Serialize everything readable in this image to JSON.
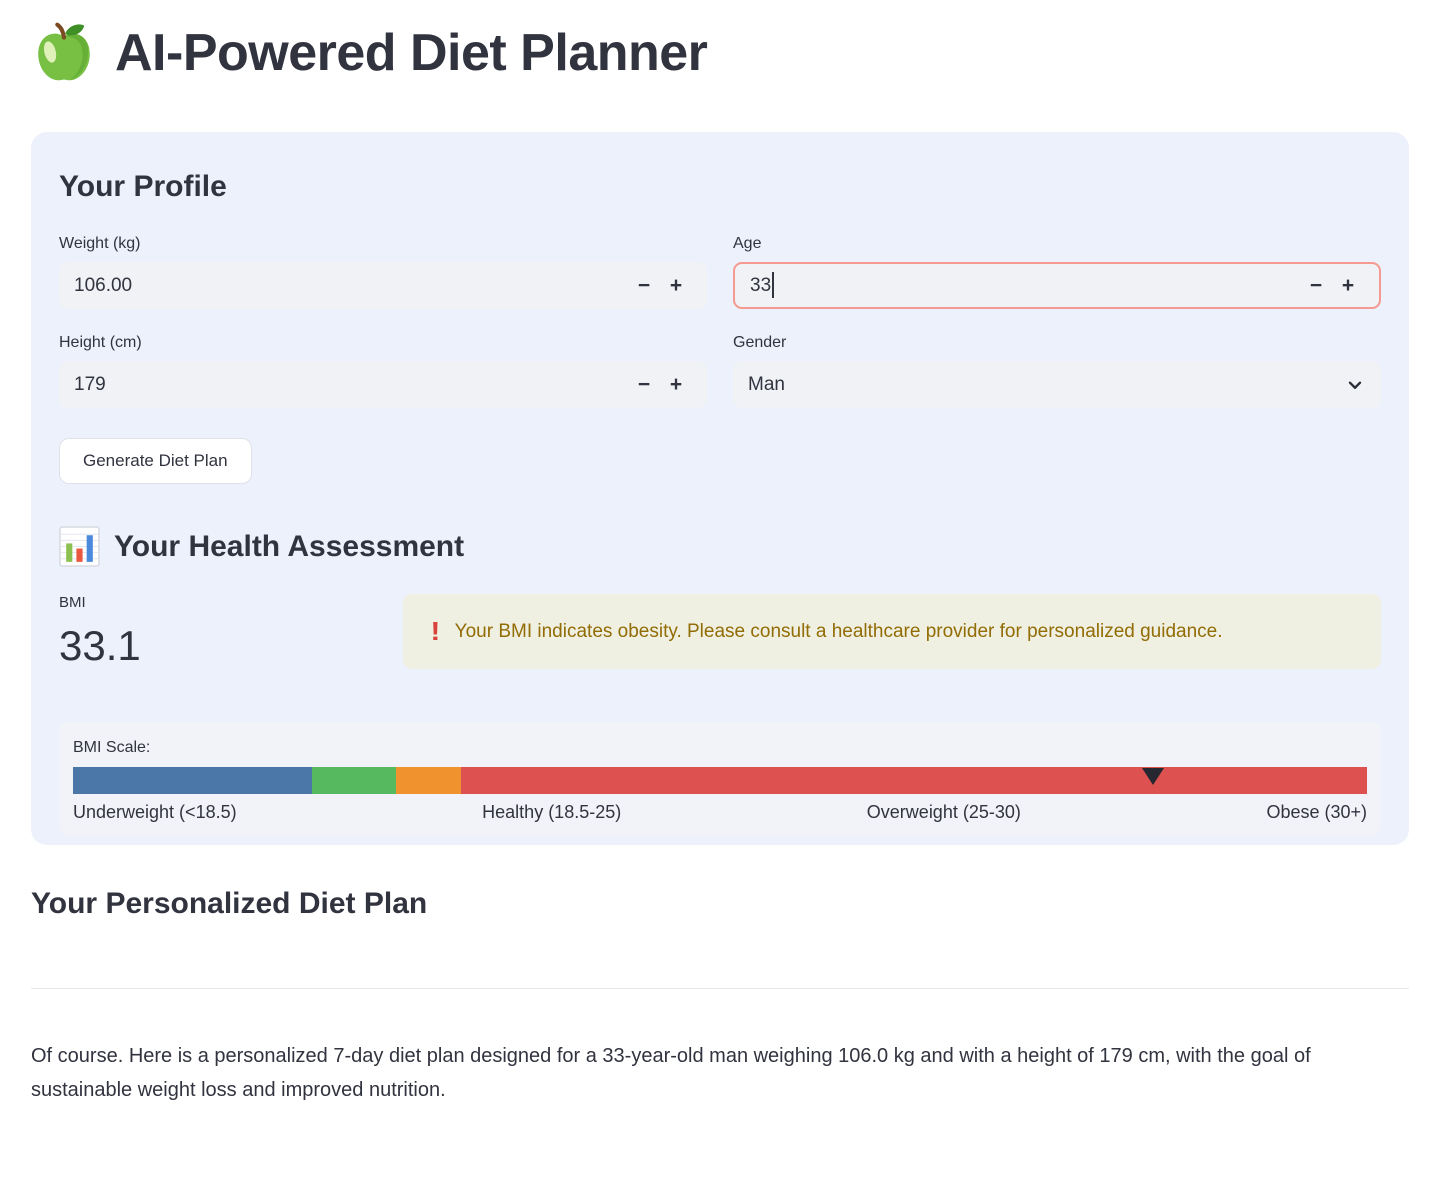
{
  "app": {
    "title": "AI-Powered Diet Planner",
    "icon": "green-apple-icon"
  },
  "controls": {
    "minus": "−",
    "plus": "+"
  },
  "profile": {
    "heading": "Your Profile",
    "weight": {
      "label": "Weight (kg)",
      "value": "106.00"
    },
    "age": {
      "label": "Age",
      "value": "33"
    },
    "height": {
      "label": "Height (cm)",
      "value": "179"
    },
    "gender": {
      "label": "Gender",
      "value": "Man"
    },
    "generate_button": "Generate Diet Plan"
  },
  "assessment": {
    "heading": "Your Health Assessment",
    "heading_icon": "bar-chart-icon",
    "bmi": {
      "label": "BMI",
      "value": "33.1"
    },
    "warning": {
      "icon": "!",
      "text": "Your BMI indicates obesity. Please consult a healthcare provider for personalized guidance.",
      "bg_color": "#f0f0e2",
      "text_color": "#926c05",
      "icon_color": "#d8433e"
    },
    "scale": {
      "label": "BMI Scale:",
      "marker_pct": 83.5,
      "marker_color": "#262730",
      "segments": [
        {
          "name": "underweight",
          "label": "Underweight (<18.5)",
          "color": "#4a76a8",
          "width_pct": 18.5
        },
        {
          "name": "healthy",
          "label": "Healthy (18.5-25)",
          "color": "#56b960",
          "width_pct": 6.5
        },
        {
          "name": "overweight",
          "label": "Overweight (25-30)",
          "color": "#f0922e",
          "width_pct": 5
        },
        {
          "name": "obese",
          "label": "Obese (30+)",
          "color": "#dd5150",
          "width_pct": 70
        }
      ]
    }
  },
  "plan": {
    "heading": "Your Personalized Diet Plan",
    "intro": "Of course. Here is a personalized 7-day diet plan designed for a 33-year-old man weighing 106.0 kg and with a height of 179 cm, with the goal of sustainable weight loss and improved nutrition."
  }
}
